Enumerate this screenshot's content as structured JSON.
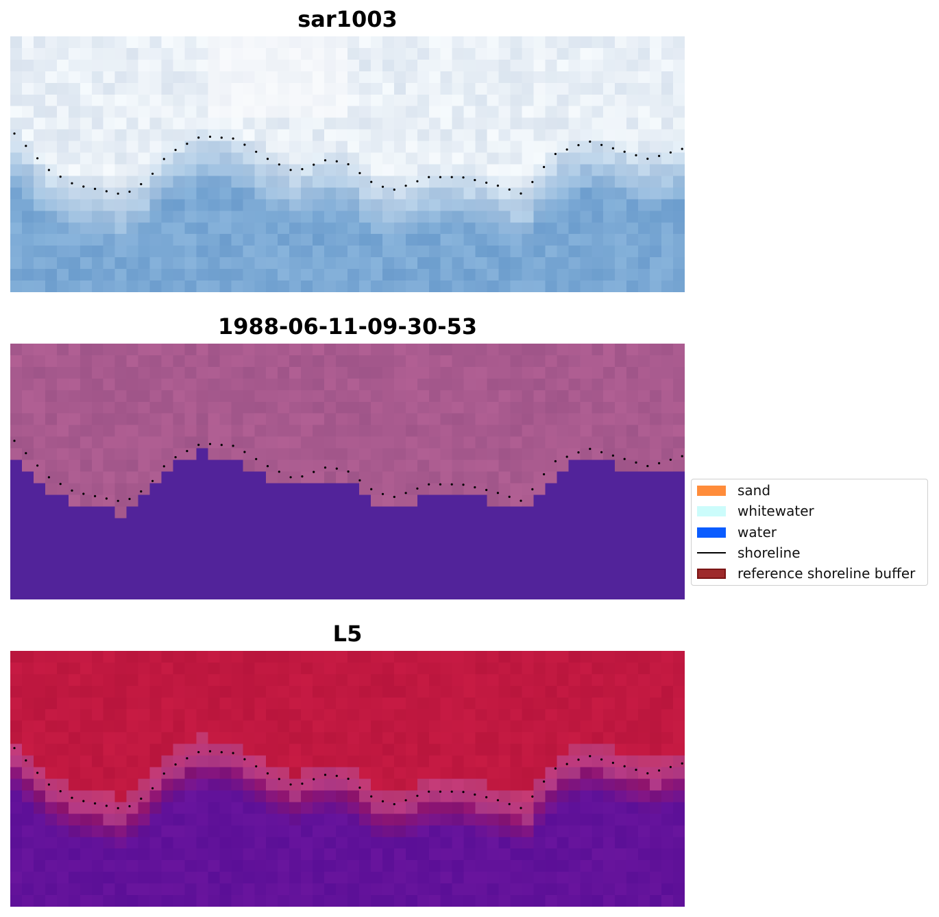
{
  "panels": [
    {
      "title": "sar1003",
      "scheme": "rgb"
    },
    {
      "title": "1988-06-11-09-30-53",
      "scheme": "classified"
    },
    {
      "title": "L5",
      "scheme": "index"
    }
  ],
  "legend": {
    "items": [
      {
        "label": "sand",
        "type": "patch",
        "color": "#ff8c3a"
      },
      {
        "label": "whitewater",
        "type": "patch",
        "color": "#ccfcfb"
      },
      {
        "label": "water",
        "type": "patch",
        "color": "#0a5cff"
      },
      {
        "label": "shoreline",
        "type": "line",
        "color": "#000000"
      },
      {
        "label": "reference shoreline buffer",
        "type": "patch",
        "color": "#9e2a2b",
        "edge": "#7a1414"
      }
    ]
  },
  "colors": {
    "rgb_light": "#e8eff6",
    "rgb_water": "#7aa8d4",
    "classified_land": "#a85a8e",
    "classified_water": "#52239a",
    "index_land": "#c01840",
    "index_water": "#62129a",
    "shoreline_dots": "#000000"
  }
}
